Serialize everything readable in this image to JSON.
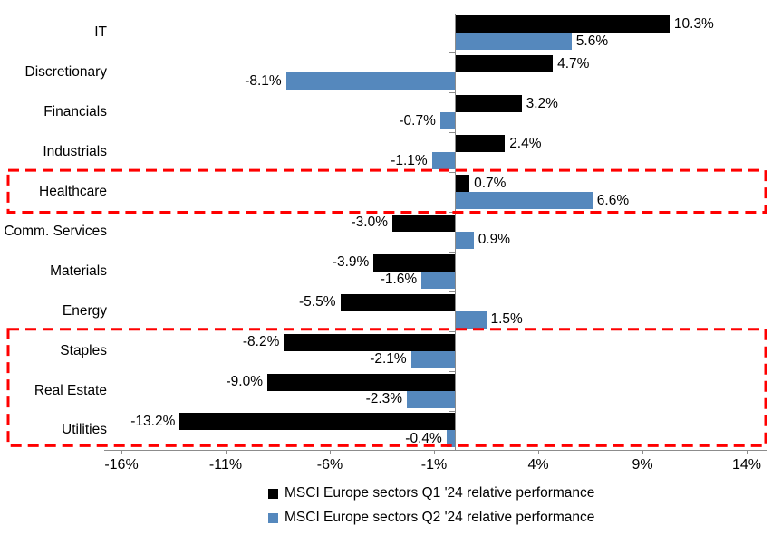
{
  "chart_data": {
    "type": "bar",
    "orientation": "horizontal",
    "title": "",
    "categories": [
      "IT",
      "Discretionary",
      "Financials",
      "Industrials",
      "Healthcare",
      "Comm. Services",
      "Materials",
      "Energy",
      "Staples",
      "Real Estate",
      "Utilities"
    ],
    "series": [
      {
        "name": "MSCI Europe sectors Q1 '24 relative performance",
        "color": "#000000",
        "values": [
          10.3,
          4.7,
          3.2,
          2.4,
          0.7,
          -3.0,
          -3.9,
          -5.5,
          -8.2,
          -9.0,
          -13.2
        ]
      },
      {
        "name": "MSCI Europe sectors Q2 '24 relative performance",
        "color": "#5588BD",
        "values": [
          5.6,
          -8.1,
          -0.7,
          -1.1,
          6.6,
          0.9,
          -1.6,
          1.5,
          -2.1,
          -2.3,
          -0.4
        ]
      }
    ],
    "value_labels": {
      "series_q1": [
        "10.3%",
        "4.7%",
        "3.2%",
        "2.4%",
        "0.7%",
        "-3.0%",
        "-3.9%",
        "-5.5%",
        "-8.2%",
        "-9.0%",
        "-13.2%"
      ],
      "series_q2": [
        "5.6%",
        "-8.1%",
        "-0.7%",
        "-1.1%",
        "6.6%",
        "0.9%",
        "-1.6%",
        "1.5%",
        "-2.1%",
        "-2.3%",
        "-0.4%"
      ]
    },
    "x_axis": {
      "ticks": [
        -16,
        -11,
        -6,
        -1,
        4,
        9,
        14
      ],
      "tick_labels": [
        "-16%",
        "-11%",
        "-6%",
        "-1%",
        "4%",
        "9%",
        "14%"
      ],
      "xlim": [
        -16.8,
        15.0
      ]
    },
    "grid": false,
    "legend_position": "bottom",
    "axis_color": "#8C8C8C",
    "highlight_color": "#FF0000",
    "highlights": [
      {
        "label": "Healthcare",
        "row_start": 4,
        "row_end": 4
      },
      {
        "label": "Staples to Utilities",
        "row_start": 8,
        "row_end": 10
      }
    ]
  }
}
